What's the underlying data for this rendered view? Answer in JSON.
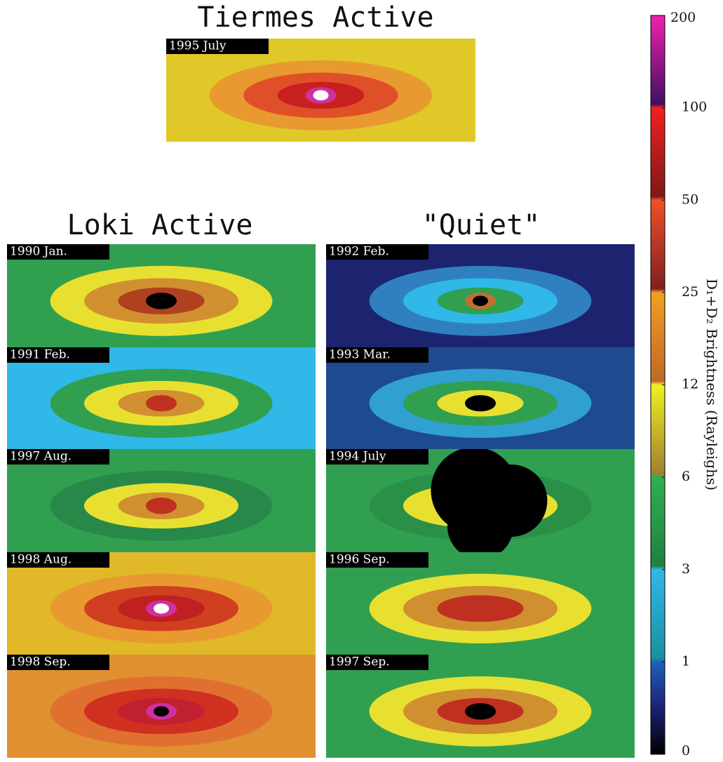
{
  "groups": [
    {
      "title": "Tiermes Active",
      "panels": [
        "1995 July"
      ]
    },
    {
      "title": "Loki Active",
      "panels": [
        "1990 Jan.",
        "1991 Feb.",
        "1997 Aug.",
        "1998 Aug.",
        "1998 Sep."
      ]
    },
    {
      "title": "\"Quiet\"",
      "panels": [
        "1992 Feb.",
        "1993 Mar.",
        "1994 July",
        "1996 Sep.",
        "1997 Sep."
      ]
    }
  ],
  "colorbar": {
    "label": "D₁+D₂ Brightness (Rayleighs)",
    "ticks": [
      0,
      1,
      3,
      6,
      12,
      25,
      50,
      100,
      200
    ]
  }
}
